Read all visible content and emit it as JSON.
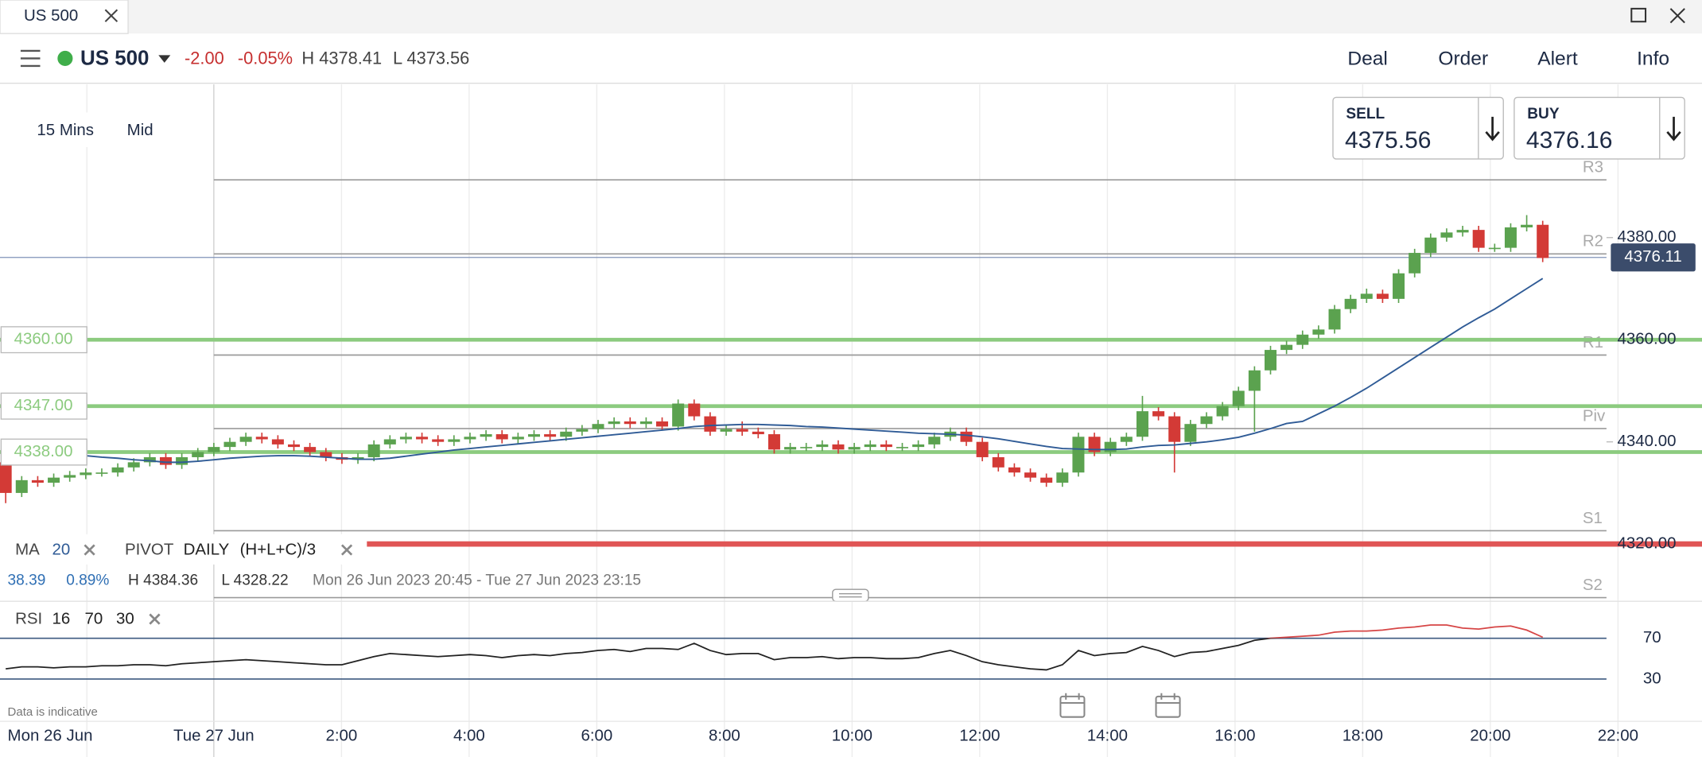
{
  "tab": {
    "title": "US 500"
  },
  "toolbar": {
    "market": "US 500",
    "change": "-2.00",
    "change_pct": "-0.05%",
    "high": "H 4378.41",
    "low": "L 4373.56",
    "buttons": [
      "Deal",
      "Order",
      "Alert",
      "Info"
    ]
  },
  "quote": {
    "sell_label": "SELL",
    "sell": "4375.56",
    "buy_label": "BUY",
    "buy": "4376.16"
  },
  "controls": {
    "interval": "15 Mins",
    "price_type": "Mid"
  },
  "chart_data": [
    {
      "type": "candlestick",
      "up_color": "#5ba24f",
      "down_color": "#d33a36",
      "ylim": [
        4309,
        4410
      ],
      "yticks": [
        {
          "value": 4380,
          "label": "4380.00"
        },
        {
          "value": 4360,
          "label": "4360.00"
        },
        {
          "value": 4340,
          "label": "4340.00"
        },
        {
          "value": 4320,
          "label": "4320.00"
        }
      ],
      "x_labels": [
        "Mon 26 Jun",
        "Tue 27 Jun",
        "2:00",
        "4:00",
        "6:00",
        "8:00",
        "10:00",
        "12:00",
        "14:00",
        "16:00",
        "18:00",
        "20:00",
        "22:00"
      ],
      "candles": [
        [
          4336,
          4337,
          4328,
          4330
        ],
        [
          4330,
          4333.3,
          4329.2,
          4332.5
        ],
        [
          4332.5,
          4333.3,
          4331.2,
          4332
        ],
        [
          4332,
          4333.8,
          4331.2,
          4333
        ],
        [
          4333,
          4334.3,
          4332.2,
          4333.5
        ],
        [
          4333.5,
          4334.8,
          4332.7,
          4334
        ],
        [
          4334,
          4334.8,
          4333.2,
          4334
        ],
        [
          4334,
          4335.8,
          4333.2,
          4335
        ],
        [
          4335,
          4336.8,
          4334.2,
          4336
        ],
        [
          4336,
          4337.8,
          4335.2,
          4337
        ],
        [
          4337,
          4337.8,
          4334.7,
          4335.5
        ],
        [
          4335.5,
          4337.8,
          4334.7,
          4337
        ],
        [
          4337,
          4338.8,
          4336.2,
          4338
        ],
        [
          4338,
          4339.8,
          4337.2,
          4339
        ],
        [
          4339,
          4340.8,
          4338.2,
          4340
        ],
        [
          4340,
          4341.8,
          4339.2,
          4341
        ],
        [
          4341,
          4341.8,
          4339.7,
          4340.5
        ],
        [
          4340.5,
          4341.3,
          4338.7,
          4339.5
        ],
        [
          4339.5,
          4340.3,
          4338.2,
          4339
        ],
        [
          4339,
          4339.8,
          4337.2,
          4338
        ],
        [
          4338,
          4338.8,
          4336.2,
          4337
        ],
        [
          4337,
          4337.8,
          4335.7,
          4336.5
        ],
        [
          4336.5,
          4337.8,
          4335.7,
          4337
        ],
        [
          4337,
          4340.3,
          4336.2,
          4339.5
        ],
        [
          4339.5,
          4341.3,
          4338.7,
          4340.5
        ],
        [
          4340.5,
          4341.8,
          4339.7,
          4341
        ],
        [
          4341,
          4341.8,
          4339.7,
          4340.5
        ],
        [
          4340.5,
          4341.3,
          4339.2,
          4340
        ],
        [
          4340,
          4341.3,
          4339.2,
          4340.5
        ],
        [
          4340.5,
          4341.8,
          4339.7,
          4341
        ],
        [
          4341,
          4342.3,
          4340.2,
          4341.5
        ],
        [
          4341.5,
          4342.3,
          4339.7,
          4340.5
        ],
        [
          4340.5,
          4341.8,
          4339.7,
          4341
        ],
        [
          4341,
          4342.3,
          4340.2,
          4341.5
        ],
        [
          4341.5,
          4342.3,
          4340.2,
          4341
        ],
        [
          4341,
          4342.8,
          4340.2,
          4342
        ],
        [
          4342,
          4343.3,
          4341.2,
          4342.5
        ],
        [
          4342.5,
          4344.3,
          4341.7,
          4343.5
        ],
        [
          4343.5,
          4344.8,
          4342.7,
          4344
        ],
        [
          4344,
          4344.8,
          4342.7,
          4343.5
        ],
        [
          4343.5,
          4344.8,
          4342.7,
          4344
        ],
        [
          4344,
          4344.8,
          4342.2,
          4343
        ],
        [
          4343,
          4348.3,
          4342.2,
          4347.5
        ],
        [
          4347.5,
          4348.3,
          4344.2,
          4345
        ],
        [
          4345,
          4345.8,
          4341.2,
          4342
        ],
        [
          4342,
          4343.3,
          4341.2,
          4342.5
        ],
        [
          4342.5,
          4344,
          4341.2,
          4342
        ],
        [
          4342,
          4342.8,
          4340.7,
          4341.5
        ],
        [
          4341.5,
          4342.3,
          4337.7,
          4338.5
        ],
        [
          4338.5,
          4339.8,
          4337.7,
          4339
        ],
        [
          4339,
          4339.8,
          4338.2,
          4339
        ],
        [
          4339,
          4340.3,
          4338.2,
          4339.5
        ],
        [
          4339.5,
          4340.3,
          4337.7,
          4338.5
        ],
        [
          4338.5,
          4339.8,
          4337.7,
          4339
        ],
        [
          4339,
          4340.3,
          4338.2,
          4339.5
        ],
        [
          4339.5,
          4340.3,
          4338.2,
          4339
        ],
        [
          4339,
          4339.8,
          4338.2,
          4339
        ],
        [
          4339,
          4340.3,
          4338.2,
          4339.5
        ],
        [
          4339.5,
          4341.8,
          4338.7,
          4341
        ],
        [
          4341,
          4342.8,
          4340.2,
          4342
        ],
        [
          4342,
          4342.8,
          4339.2,
          4340
        ],
        [
          4340,
          4340.8,
          4336.2,
          4337
        ],
        [
          4337,
          4337.8,
          4334.2,
          4335
        ],
        [
          4335,
          4335.8,
          4333.2,
          4334
        ],
        [
          4334,
          4334.8,
          4332.2,
          4333
        ],
        [
          4333,
          4333.8,
          4331.2,
          4332
        ],
        [
          4332,
          4334.8,
          4331.2,
          4334
        ],
        [
          4334,
          4341.8,
          4333.2,
          4341
        ],
        [
          4341,
          4341.8,
          4337.2,
          4338
        ],
        [
          4338,
          4340.8,
          4337.2,
          4340
        ],
        [
          4340,
          4341.8,
          4339.2,
          4341
        ],
        [
          4341,
          4349,
          4340.2,
          4346
        ],
        [
          4346,
          4346.8,
          4344.2,
          4345
        ],
        [
          4345,
          4345.8,
          4334,
          4340
        ],
        [
          4340,
          4344.3,
          4339.2,
          4343.5
        ],
        [
          4343.5,
          4345.8,
          4342.7,
          4345
        ],
        [
          4345,
          4347.8,
          4344.2,
          4347
        ],
        [
          4347,
          4350.8,
          4346.2,
          4350
        ],
        [
          4350,
          4354.8,
          4342,
          4354
        ],
        [
          4354,
          4358.8,
          4353.2,
          4358
        ],
        [
          4358,
          4359.8,
          4357.2,
          4359
        ],
        [
          4359,
          4361.8,
          4358.2,
          4361
        ],
        [
          4361,
          4362.8,
          4360.2,
          4362
        ],
        [
          4362,
          4366.8,
          4361.2,
          4366
        ],
        [
          4366,
          4368.8,
          4365.2,
          4368
        ],
        [
          4368,
          4370,
          4367.2,
          4369
        ],
        [
          4369,
          4369.8,
          4367.2,
          4368
        ],
        [
          4368,
          4373.8,
          4367.2,
          4373
        ],
        [
          4373,
          4377.8,
          4372.2,
          4377
        ],
        [
          4377,
          4380.8,
          4376.2,
          4380
        ],
        [
          4380,
          4381.8,
          4379.2,
          4381
        ],
        [
          4381,
          4382.3,
          4380.2,
          4381.5
        ],
        [
          4381.5,
          4382.3,
          4377.2,
          4378
        ],
        [
          4378,
          4378.8,
          4377.2,
          4378
        ],
        [
          4378,
          4382.8,
          4377.2,
          4382
        ],
        [
          4382,
          4384.4,
          4381.2,
          4382.5
        ],
        [
          4382.5,
          4383.3,
          4375.2,
          4376
        ]
      ],
      "series": [
        {
          "name": "MA",
          "color": "#2f5b96",
          "values": [
            4338.5,
            4338.3,
            4338,
            4337.8,
            4337.5,
            4337.3,
            4337,
            4336.8,
            4336.5,
            4336.3,
            4336,
            4336,
            4336.2,
            4336.5,
            4336.8,
            4337,
            4337.2,
            4337.3,
            4337.3,
            4337.2,
            4337,
            4336.8,
            4336.6,
            4336.6,
            4336.8,
            4337.2,
            4337.6,
            4338,
            4338.4,
            4338.7,
            4339,
            4339.3,
            4339.6,
            4339.9,
            4340.2,
            4340.5,
            4340.8,
            4341.1,
            4341.4,
            4341.7,
            4342,
            4342.3,
            4342.6,
            4343,
            4343.2,
            4343.3,
            4343.4,
            4343.4,
            4343.3,
            4343.2,
            4343,
            4342.9,
            4342.7,
            4342.5,
            4342.3,
            4342.1,
            4341.9,
            4341.7,
            4341.6,
            4341.5,
            4341.3,
            4341,
            4340.6,
            4340.1,
            4339.6,
            4339.1,
            4338.7,
            4338.6,
            4338.5,
            4338.5,
            4338.6,
            4339,
            4339.3,
            4339.4,
            4339.7,
            4340,
            4340.4,
            4340.9,
            4341.7,
            4342.6,
            4343.6,
            4344,
            4345.5,
            4347,
            4348.7,
            4350.5,
            4352.5,
            4354.5,
            4356.5,
            4358.5,
            4360.5,
            4362.5,
            4364.3,
            4366,
            4368,
            4370,
            4372
          ]
        }
      ],
      "levels": [
        {
          "value": 4360,
          "label": "4360.00",
          "color": "#8ccb7f"
        },
        {
          "value": 4347,
          "label": "4347.00",
          "color": "#8ccb7f"
        },
        {
          "value": 4338,
          "label": "4338.00",
          "color": "#8ccb7f"
        }
      ],
      "alert_line": {
        "value": 4320,
        "color": "#e05555"
      },
      "pivots": [
        {
          "name": "R3",
          "value": 4391.3
        },
        {
          "name": "R2",
          "value": 4376.8
        },
        {
          "name": "R1",
          "value": 4357
        },
        {
          "name": "Piv",
          "value": 4342.6
        },
        {
          "name": "S1",
          "value": 4322.6
        },
        {
          "name": "S2",
          "value": 4309.5
        }
      ],
      "last_price": 4376.11,
      "legend": {
        "ma": "MA",
        "ma_period": 20,
        "pivot": "PIVOT",
        "pivot_period": "DAILY",
        "pivot_formula": "(H+L+C)/3"
      },
      "stats": {
        "change": 38.39,
        "change_pct": "0.89%",
        "high": "H 4384.36",
        "low": "L 4328.22",
        "range": "Mon 26 Jun 2023 20:45 - Tue 27 Jun 2023 23:15"
      }
    },
    {
      "type": "line",
      "name": "RSI",
      "period": 16,
      "upper": 70,
      "lower": 30,
      "color": "#222222",
      "over_color": "#d64545",
      "ylim": [
        -4,
        102
      ],
      "yticks": [
        70,
        30
      ],
      "values": [
        40,
        42,
        42,
        41,
        42,
        42,
        43,
        43,
        44,
        44,
        43,
        45,
        46,
        47,
        48,
        49,
        48,
        47,
        46,
        45,
        44,
        44,
        48,
        52,
        55,
        54,
        53,
        52,
        53,
        54,
        53,
        51,
        53,
        54,
        53,
        55,
        56,
        58,
        59,
        57,
        60,
        60,
        59,
        65,
        58,
        54,
        55,
        55,
        49,
        51,
        51,
        52,
        50,
        51,
        51,
        50,
        50,
        51,
        55,
        58,
        53,
        47,
        44,
        42,
        40,
        39,
        44,
        58,
        53,
        55,
        56,
        62,
        58,
        52,
        56,
        57,
        60,
        63,
        68,
        70,
        71,
        72,
        73,
        76,
        77,
        77,
        78,
        80,
        81,
        83,
        83,
        80,
        79,
        81,
        82,
        78,
        71
      ]
    }
  ],
  "footer": {
    "note": "Data is indicative"
  }
}
